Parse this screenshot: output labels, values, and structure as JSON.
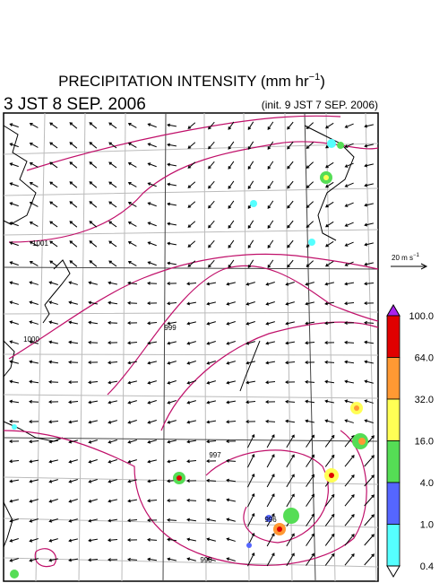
{
  "header": {
    "title": "PRECIPITATION INTENSITY (mm hr",
    "title_exponent": "−1",
    "title_close": ")",
    "valid_time": "3 JST 8 SEP. 2006",
    "init_time": "(init. 9 JST 7 SEP. 2006)"
  },
  "map": {
    "isobar_labels": [
      "1001",
      "1000",
      "999",
      "997",
      "996",
      "998"
    ]
  },
  "wind_scale": {
    "label": "20 m s",
    "exponent": "−1"
  },
  "colorbar": {
    "labels": [
      "100.0",
      "64.0",
      "32.0",
      "16.0",
      "4.0",
      "1.0",
      "0.4"
    ],
    "colors": [
      "#e00000",
      "#ff9933",
      "#ffff55",
      "#55dd55",
      "#5566ff",
      "#55ffff"
    ],
    "over_color": "#aa22ee",
    "under_color": "#ffffff"
  }
}
